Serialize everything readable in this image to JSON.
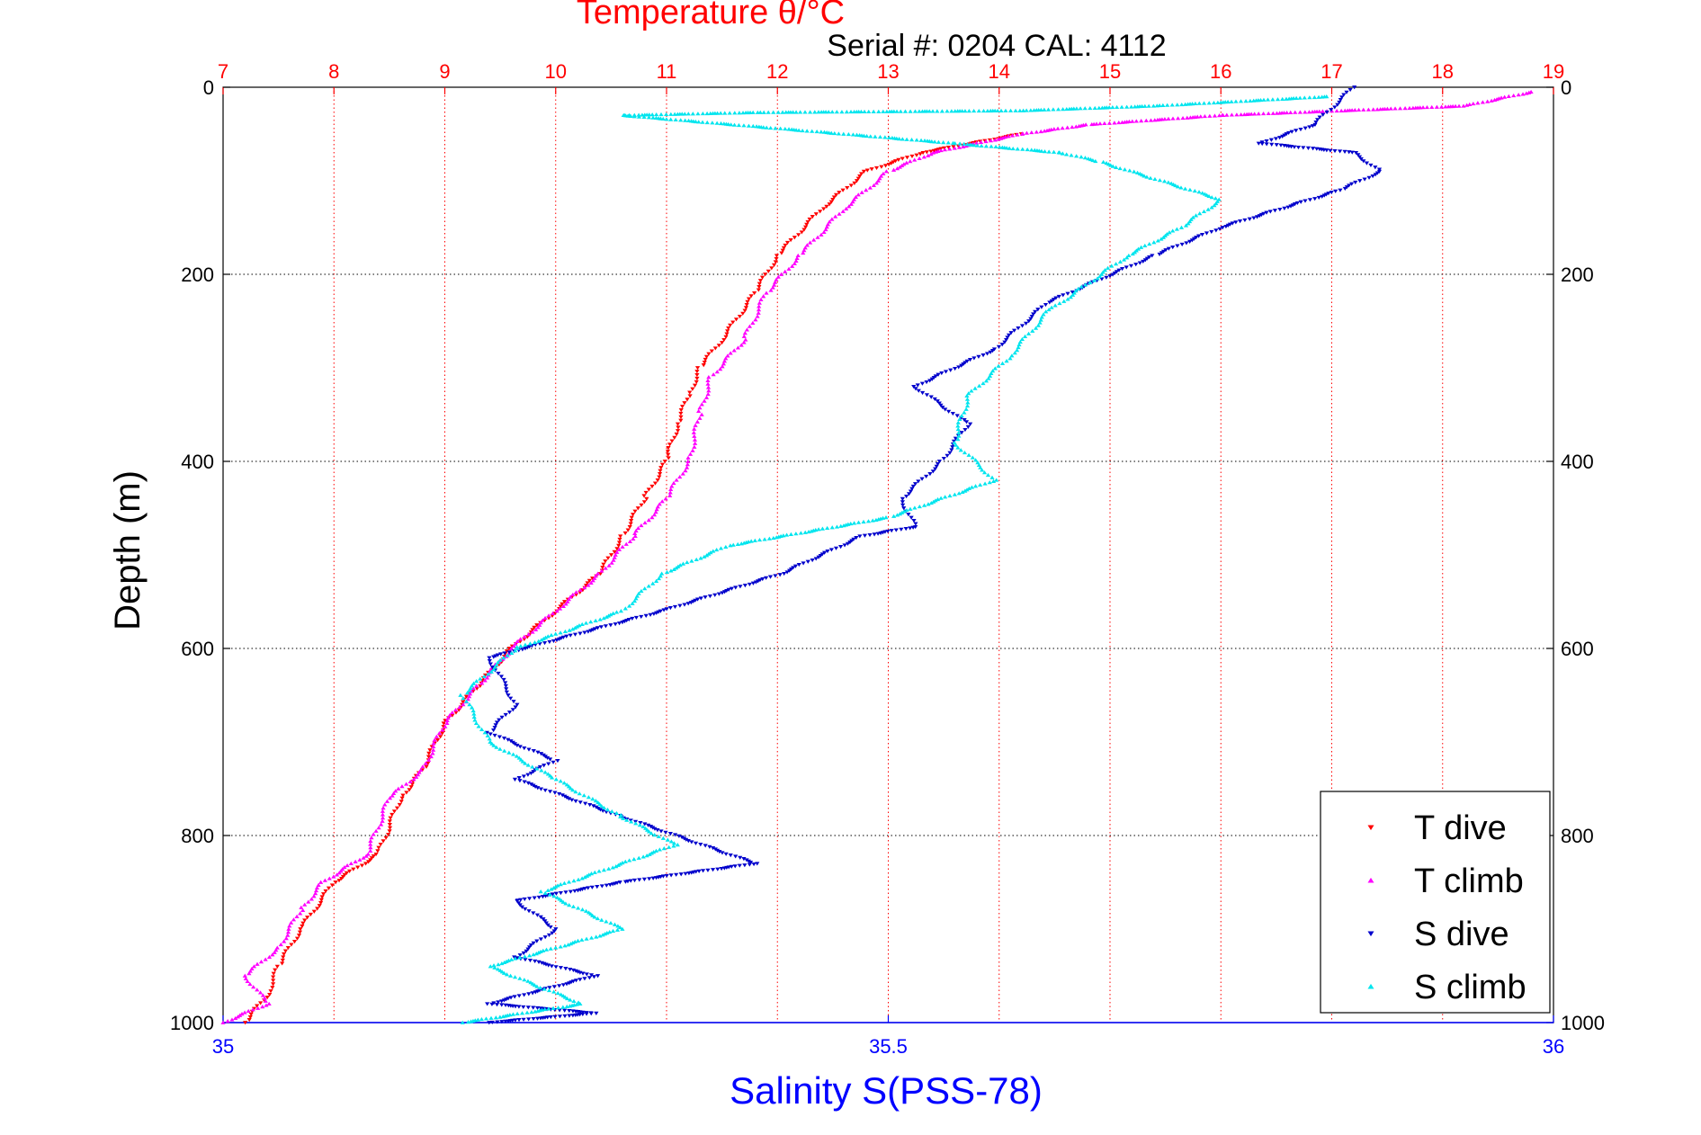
{
  "chart_data": {
    "type": "scatter",
    "title": "Temperature θ/°C",
    "subtitle": "Serial #: 0204  CAL: 4112",
    "ylabel": "Depth (m)",
    "xlabel": "Salinity S(PSS-78)",
    "ylim": [
      0,
      1000
    ],
    "y_ticks": [
      "0",
      "200",
      "400",
      "600",
      "800",
      "1000"
    ],
    "x_top": {
      "range": [
        7,
        19
      ],
      "ticks": [
        "7",
        "8",
        "9",
        "10",
        "11",
        "12",
        "13",
        "14",
        "15",
        "16",
        "17",
        "18",
        "19"
      ]
    },
    "x_bottom": {
      "range": [
        35,
        36
      ],
      "ticks": [
        "35",
        "35.5",
        "36"
      ]
    },
    "grid": true,
    "legend_position": "bottom-right",
    "colors": {
      "temperature_axis": "#ff0000",
      "salinity_axis": "#0000ff",
      "T dive": "#ff0000",
      "T climb": "#ff00ff",
      "S dive": "#0000cc",
      "S climb": "#00e5ee"
    },
    "series": [
      {
        "name": "T dive",
        "axis": "top",
        "marker": "triangle-down",
        "points": [
          [
            14.2,
            50
          ],
          [
            13.3,
            70
          ],
          [
            12.8,
            90
          ],
          [
            12.4,
            130
          ],
          [
            12.0,
            180
          ],
          [
            11.8,
            220
          ],
          [
            11.5,
            270
          ],
          [
            11.3,
            300
          ],
          [
            11.2,
            330
          ],
          [
            11.1,
            360
          ],
          [
            11.0,
            400
          ],
          [
            10.8,
            440
          ],
          [
            10.6,
            480
          ],
          [
            10.4,
            520
          ],
          [
            10.0,
            560
          ],
          [
            9.6,
            600
          ],
          [
            9.3,
            640
          ],
          [
            9.0,
            680
          ],
          [
            8.8,
            730
          ],
          [
            8.6,
            760
          ],
          [
            8.4,
            820
          ],
          [
            8.0,
            850
          ],
          [
            7.7,
            900
          ],
          [
            7.5,
            940
          ],
          [
            7.4,
            970
          ],
          [
            7.2,
            1000
          ]
        ]
      },
      {
        "name": "T climb",
        "axis": "top",
        "marker": "triangle-up",
        "points": [
          [
            18.8,
            5
          ],
          [
            18.2,
            20
          ],
          [
            16.0,
            30
          ],
          [
            14.8,
            40
          ],
          [
            14.2,
            50
          ],
          [
            13.4,
            70
          ],
          [
            13.0,
            90
          ],
          [
            12.6,
            130
          ],
          [
            12.2,
            180
          ],
          [
            11.9,
            220
          ],
          [
            11.7,
            270
          ],
          [
            11.4,
            310
          ],
          [
            11.3,
            350
          ],
          [
            11.2,
            400
          ],
          [
            11.0,
            440
          ],
          [
            10.7,
            480
          ],
          [
            10.4,
            520
          ],
          [
            10.0,
            560
          ],
          [
            9.6,
            600
          ],
          [
            9.3,
            640
          ],
          [
            9.0,
            680
          ],
          [
            8.8,
            730
          ],
          [
            8.5,
            760
          ],
          [
            8.3,
            820
          ],
          [
            7.9,
            850
          ],
          [
            7.7,
            880
          ],
          [
            7.5,
            920
          ],
          [
            7.2,
            950
          ],
          [
            7.4,
            980
          ],
          [
            7.0,
            1000
          ]
        ]
      },
      {
        "name": "S dive",
        "axis": "bottom",
        "marker": "triangle-down",
        "points": [
          [
            35.85,
            0
          ],
          [
            35.82,
            40
          ],
          [
            35.78,
            60
          ],
          [
            35.85,
            70
          ],
          [
            35.87,
            90
          ],
          [
            35.84,
            110
          ],
          [
            35.75,
            150
          ],
          [
            35.7,
            180
          ],
          [
            35.62,
            230
          ],
          [
            35.58,
            280
          ],
          [
            35.52,
            320
          ],
          [
            35.56,
            360
          ],
          [
            35.54,
            400
          ],
          [
            35.51,
            440
          ],
          [
            35.52,
            470
          ],
          [
            35.48,
            480
          ],
          [
            35.42,
            520
          ],
          [
            35.33,
            560
          ],
          [
            35.2,
            610
          ],
          [
            35.22,
            660
          ],
          [
            35.2,
            690
          ],
          [
            35.25,
            720
          ],
          [
            35.22,
            740
          ],
          [
            35.3,
            780
          ],
          [
            35.4,
            830
          ],
          [
            35.3,
            850
          ],
          [
            35.22,
            870
          ],
          [
            35.25,
            900
          ],
          [
            35.22,
            930
          ],
          [
            35.28,
            950
          ],
          [
            35.2,
            980
          ],
          [
            35.28,
            990
          ],
          [
            35.2,
            1000
          ]
        ]
      },
      {
        "name": "S climb",
        "axis": "bottom",
        "marker": "triangle-up",
        "points": [
          [
            35.83,
            10
          ],
          [
            35.7,
            20
          ],
          [
            35.6,
            25
          ],
          [
            35.4,
            27
          ],
          [
            35.3,
            30
          ],
          [
            35.55,
            60
          ],
          [
            35.63,
            70
          ],
          [
            35.66,
            80
          ],
          [
            35.75,
            120
          ],
          [
            35.72,
            150
          ],
          [
            35.68,
            180
          ],
          [
            35.62,
            240
          ],
          [
            35.59,
            290
          ],
          [
            35.56,
            330
          ],
          [
            35.55,
            380
          ],
          [
            35.58,
            420
          ],
          [
            35.5,
            460
          ],
          [
            35.38,
            490
          ],
          [
            35.33,
            520
          ],
          [
            35.3,
            560
          ],
          [
            35.22,
            600
          ],
          [
            35.18,
            650
          ],
          [
            35.2,
            700
          ],
          [
            35.25,
            740
          ],
          [
            35.3,
            780
          ],
          [
            35.34,
            810
          ],
          [
            35.24,
            860
          ],
          [
            35.3,
            900
          ],
          [
            35.2,
            940
          ],
          [
            35.27,
            980
          ],
          [
            35.18,
            1000
          ]
        ]
      }
    ]
  }
}
